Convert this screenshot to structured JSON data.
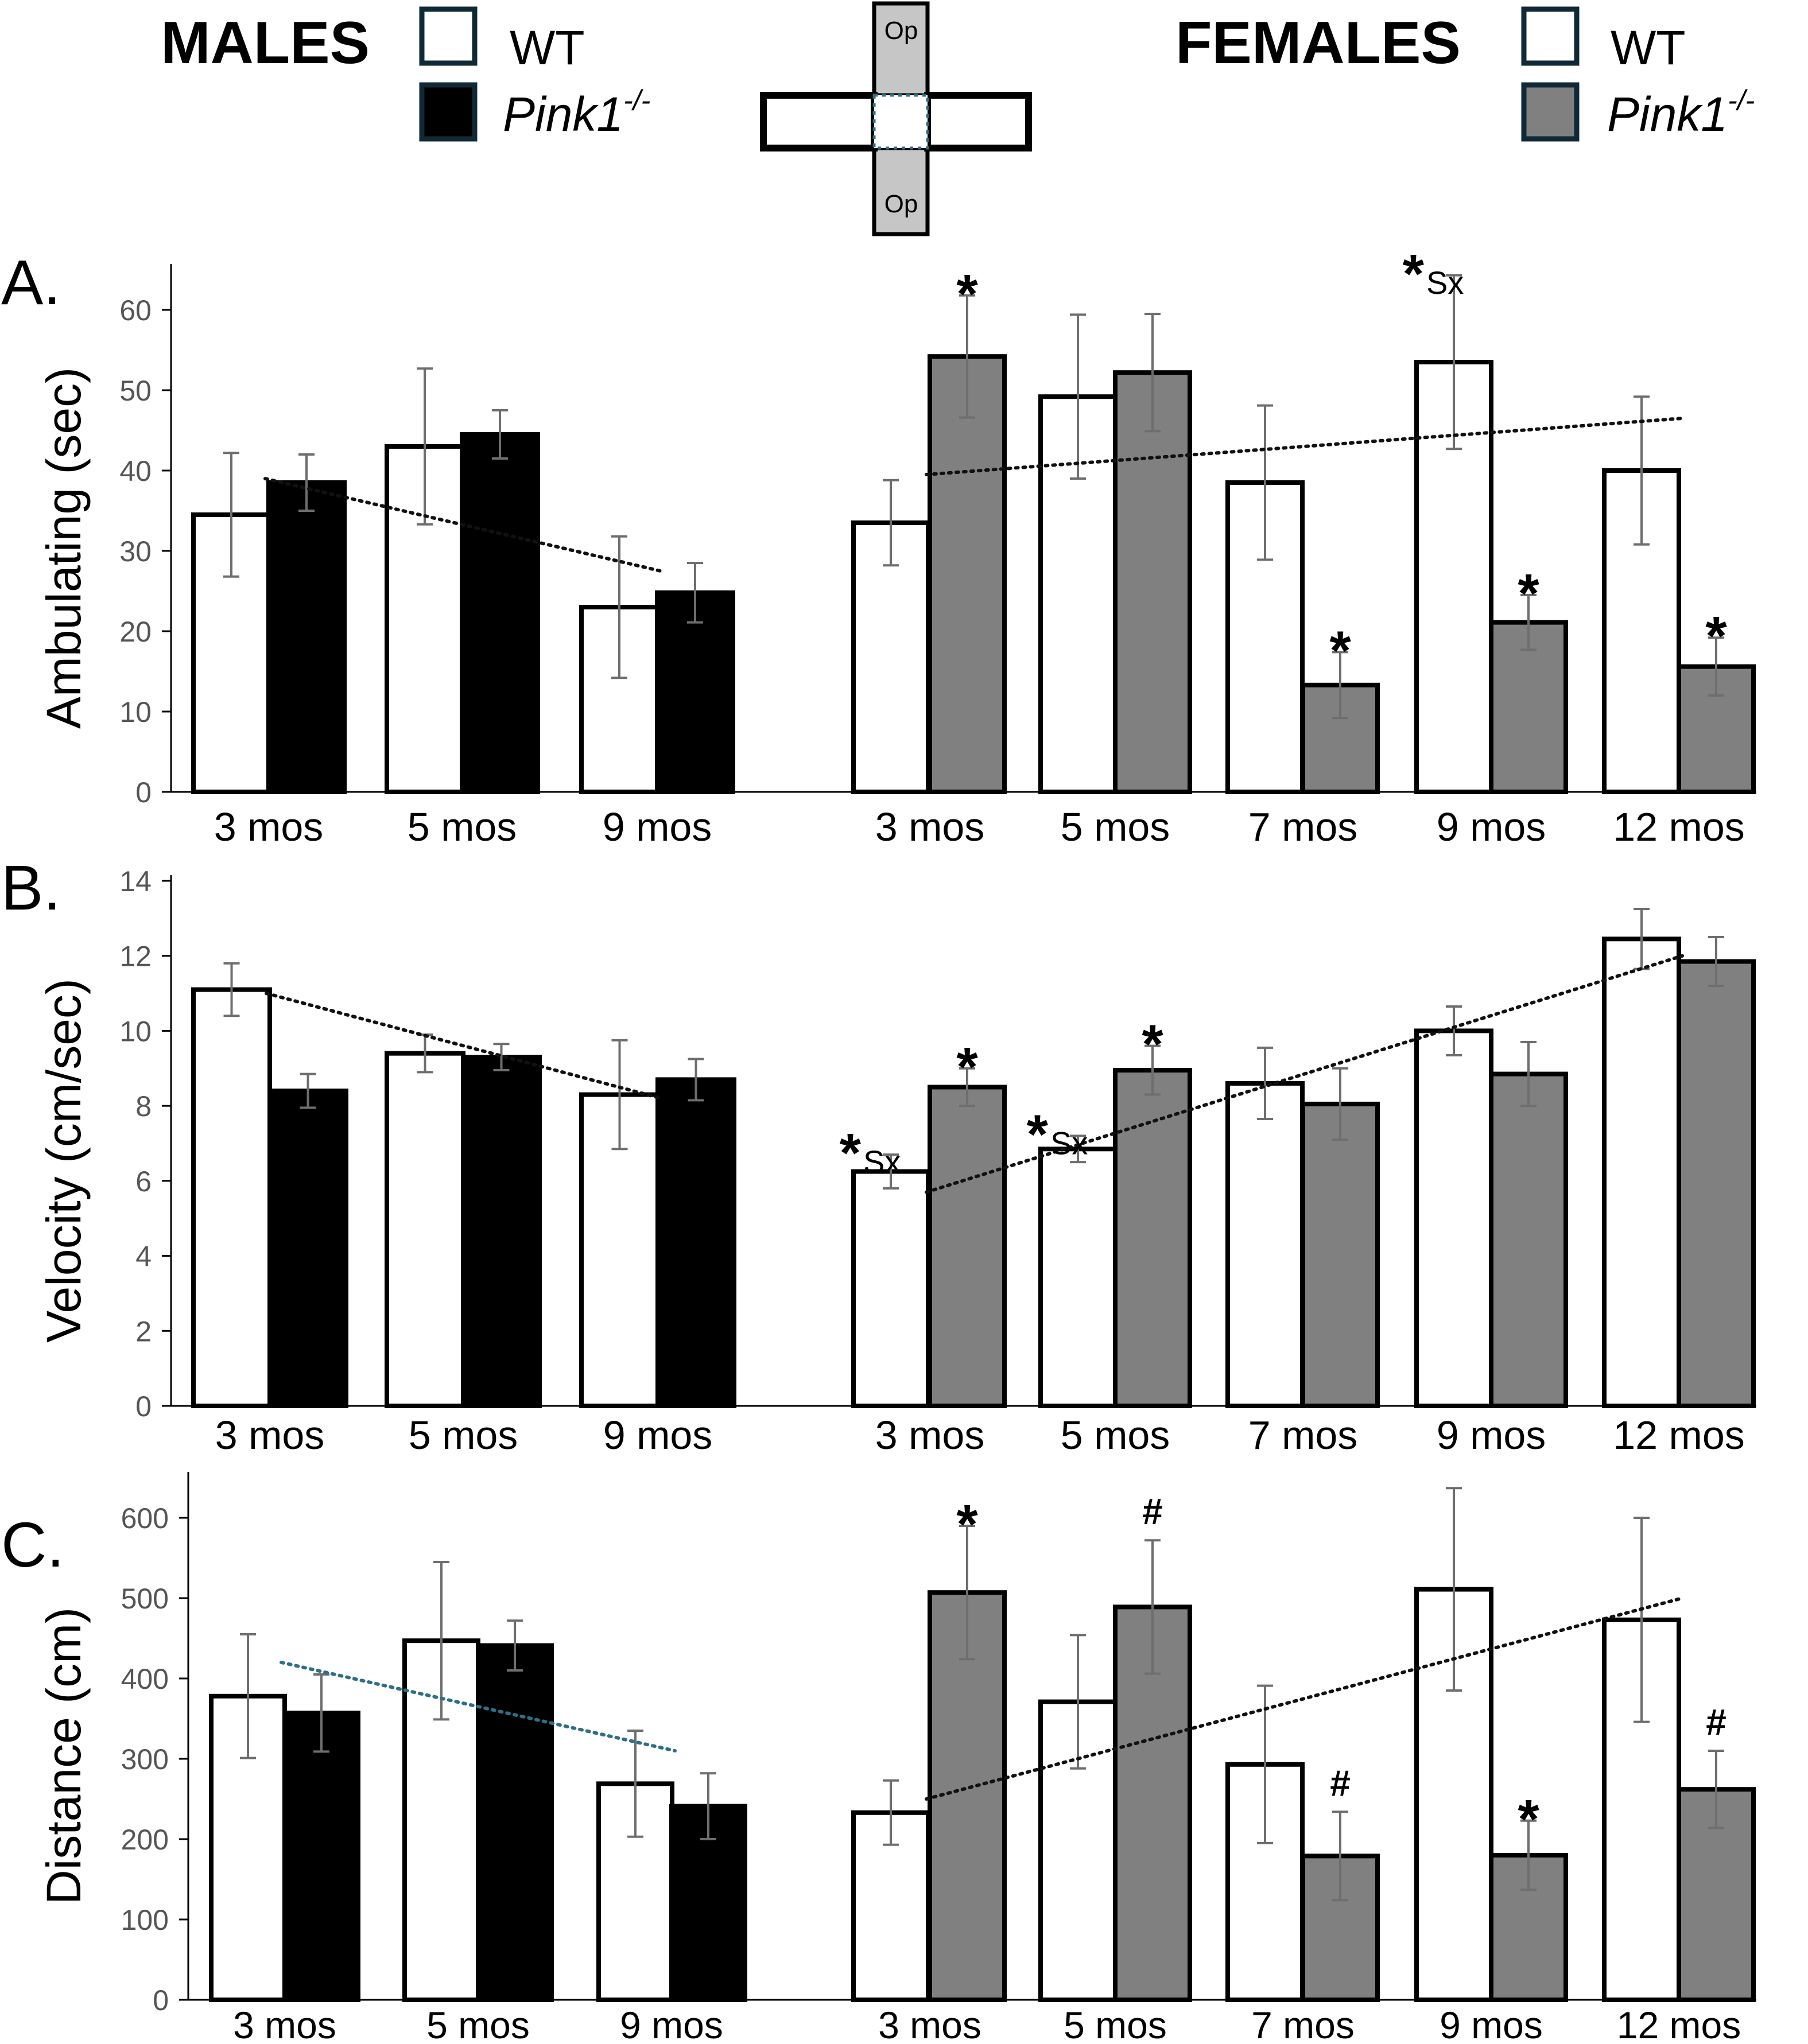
{
  "legend": {
    "males_title": "MALES",
    "females_title": "FEMALES",
    "wt_label": "WT",
    "ko_label_main": "Pink1",
    "ko_label_sup": "-/-"
  },
  "maze_icon": {
    "open_arm_label": "Op"
  },
  "colors": {
    "wt_fill": "#ffffff",
    "male_ko_fill": "#000000",
    "female_ko_fill": "#808080",
    "legend_border": "#0f2a36",
    "error_bar": "#6e6e6e",
    "trend_black": "#111111",
    "trend_teal": "#2e6f86"
  },
  "chart_data": [
    {
      "type": "bar",
      "panel_label": "A.",
      "ylabel": "Ambulating (sec)",
      "ylim": [
        0,
        65
      ],
      "yticks": [
        0,
        10,
        20,
        30,
        40,
        50,
        60
      ],
      "groups": [
        {
          "sex": "males",
          "categories": [
            "3 mos",
            "5 mos",
            "9 mos"
          ],
          "series": [
            {
              "name": "WT",
              "values": [
                34.5,
                43,
                23
              ],
              "errors": [
                7.7,
                9.7,
                8.8
              ]
            },
            {
              "name": "Pink1-/-",
              "values": [
                38.5,
                44.5,
                24.8
              ],
              "errors": [
                3.5,
                3,
                3.7
              ]
            }
          ],
          "trendline": {
            "from": [
              0,
              39
            ],
            "to": [
              2,
              27.5
            ],
            "color": "black"
          }
        },
        {
          "sex": "females",
          "categories": [
            "3 mos",
            "5 mos",
            "7 mos",
            "9 mos",
            "12 mos"
          ],
          "series": [
            {
              "name": "WT",
              "values": [
                33.5,
                49.2,
                38.5,
                53.5,
                40
              ],
              "errors": [
                5.3,
                10.2,
                9.6,
                10.8,
                9.2
              ]
            },
            {
              "name": "Pink1-/-",
              "values": [
                54.2,
                52.2,
                13.3,
                21.1,
                15.6
              ],
              "errors": [
                7.6,
                7.3,
                4.1,
                3.4,
                3.6
              ]
            }
          ],
          "trendline": {
            "from": [
              0,
              39.5
            ],
            "to": [
              4,
              46.5
            ],
            "color": "black"
          }
        }
      ],
      "annotations": [
        {
          "group": 1,
          "category": 0,
          "series": 1,
          "text": "*"
        },
        {
          "group": 1,
          "category": 2,
          "series": 1,
          "text": "*"
        },
        {
          "group": 1,
          "category": 3,
          "series": 0,
          "text": "*",
          "sub": "Sx"
        },
        {
          "group": 1,
          "category": 3,
          "series": 1,
          "text": "*"
        },
        {
          "group": 1,
          "category": 4,
          "series": 1,
          "text": "*"
        }
      ]
    },
    {
      "type": "bar",
      "panel_label": "B.",
      "ylabel": "Velocity (cm/sec)",
      "ylim": [
        0,
        14
      ],
      "yticks": [
        0,
        2,
        4,
        6,
        8,
        10,
        12,
        14
      ],
      "groups": [
        {
          "sex": "males",
          "categories": [
            "3 mos",
            "5 mos",
            "9 mos"
          ],
          "series": [
            {
              "name": "WT",
              "values": [
                11.1,
                9.4,
                8.3
              ],
              "errors": [
                0.7,
                0.5,
                1.45
              ]
            },
            {
              "name": "Pink1-/-",
              "values": [
                8.4,
                9.3,
                8.7
              ],
              "errors": [
                0.45,
                0.35,
                0.55
              ]
            }
          ],
          "trendline": {
            "from": [
              0,
              11
            ],
            "to": [
              2,
              8.2
            ],
            "color": "black"
          }
        },
        {
          "sex": "females",
          "categories": [
            "3 mos",
            "5 mos",
            "7 mos",
            "9 mos",
            "12 mos"
          ],
          "series": [
            {
              "name": "WT",
              "values": [
                6.25,
                6.85,
                8.6,
                10,
                12.45
              ],
              "errors": [
                0.45,
                0.35,
                0.95,
                0.65,
                0.8
              ]
            },
            {
              "name": "Pink1-/-",
              "values": [
                8.5,
                8.95,
                8.05,
                8.85,
                11.85
              ],
              "errors": [
                0.5,
                0.65,
                0.95,
                0.85,
                0.65
              ]
            }
          ],
          "trendline": {
            "from": [
              0,
              5.7
            ],
            "to": [
              4,
              12
            ],
            "color": "black"
          }
        }
      ],
      "annotations": [
        {
          "group": 1,
          "category": 0,
          "series": 0,
          "text": "*",
          "sub": "Sx"
        },
        {
          "group": 1,
          "category": 0,
          "series": 1,
          "text": "*"
        },
        {
          "group": 1,
          "category": 1,
          "series": 0,
          "text": "*",
          "sub": "Sx"
        },
        {
          "group": 1,
          "category": 1,
          "series": 1,
          "text": "*"
        }
      ]
    },
    {
      "type": "bar",
      "panel_label": "C.",
      "ylabel": "Distance (cm)",
      "ylim": [
        0,
        650
      ],
      "yticks": [
        0,
        100,
        200,
        300,
        400,
        500,
        600
      ],
      "groups": [
        {
          "sex": "males",
          "categories": [
            "3 mos",
            "5 mos",
            "9 mos"
          ],
          "series": [
            {
              "name": "WT",
              "values": [
                378,
                447,
                269
              ],
              "errors": [
                77,
                98,
                66
              ]
            },
            {
              "name": "Pink1-/-",
              "values": [
                357,
                441,
                241
              ],
              "errors": [
                48,
                31,
                41
              ]
            }
          ],
          "trendline": {
            "from": [
              0,
              420
            ],
            "to": [
              2,
              310
            ],
            "color": "teal"
          }
        },
        {
          "sex": "females",
          "categories": [
            "3 mos",
            "5 mos",
            "7 mos",
            "9 mos",
            "12 mos"
          ],
          "series": [
            {
              "name": "WT",
              "values": [
                233,
                371,
                293,
                511,
                473
              ],
              "errors": [
                40,
                83,
                98,
                126,
                127
              ]
            },
            {
              "name": "Pink1-/-",
              "values": [
                507,
                489,
                179,
                180,
                262
              ],
              "errors": [
                83,
                83,
                55,
                43,
                48
              ]
            }
          ],
          "trendline": {
            "from": [
              0,
              250
            ],
            "to": [
              4,
              500
            ],
            "color": "black"
          }
        }
      ],
      "annotations": [
        {
          "group": 1,
          "category": 0,
          "series": 1,
          "text": "*"
        },
        {
          "group": 1,
          "category": 1,
          "series": 1,
          "text": "#"
        },
        {
          "group": 1,
          "category": 2,
          "series": 1,
          "text": "#"
        },
        {
          "group": 1,
          "category": 3,
          "series": 1,
          "text": "*"
        },
        {
          "group": 1,
          "category": 4,
          "series": 1,
          "text": "#"
        }
      ]
    }
  ]
}
